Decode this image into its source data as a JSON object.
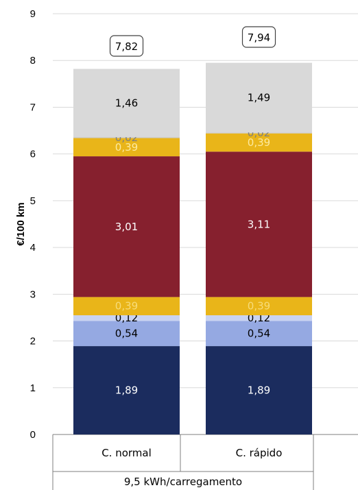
{
  "chart_data": {
    "type": "bar",
    "stacked": true,
    "ylabel": "€/100 km",
    "ylim": [
      0,
      9
    ],
    "yticks": [
      "0",
      "1",
      "2",
      "3",
      "4",
      "5",
      "6",
      "7",
      "8",
      "9"
    ],
    "grid": true,
    "categories": [
      "C. normal",
      "C. rápido"
    ],
    "group_label": "9,5 kWh/carregamento",
    "totals": [
      7.82,
      7.94
    ],
    "total_labels": [
      "7,82",
      "7,94"
    ],
    "series": [
      {
        "values": [
          1.89,
          1.89
        ],
        "labels": [
          "1,89",
          "1,89"
        ],
        "color": "#1b2c5e",
        "label_color": "#ffffff"
      },
      {
        "values": [
          0.54,
          0.54
        ],
        "labels": [
          "0,54",
          "0,54"
        ],
        "color": "#95a9e2",
        "label_color": "#000000"
      },
      {
        "values": [
          0.12,
          0.12
        ],
        "labels": [
          "0,12",
          "0,12"
        ],
        "color": "#c9d3f1",
        "label_color": "#000000"
      },
      {
        "values": [
          0.39,
          0.39
        ],
        "labels": [
          "0,39",
          "0,39"
        ],
        "color": "#e9b519",
        "label_color": "#f7dc7a"
      },
      {
        "values": [
          3.01,
          3.11
        ],
        "labels": [
          "3,01",
          "3,11"
        ],
        "color": "#86202e",
        "label_color": "#ffffff"
      },
      {
        "values": [
          0.39,
          0.39
        ],
        "labels": [
          "0,39",
          "0,39"
        ],
        "color": "#e9b519",
        "label_color": "#fdeaa0"
      },
      {
        "values": [
          0.02,
          0.02
        ],
        "labels": [
          "0,02",
          "0,02"
        ],
        "color": "#c8c8c8",
        "label_color": "#7f7f7f"
      },
      {
        "values": [
          1.46,
          1.49
        ],
        "labels": [
          "1,46",
          "1,49"
        ],
        "color": "#d9d9d9",
        "label_color": "#000000"
      }
    ]
  }
}
